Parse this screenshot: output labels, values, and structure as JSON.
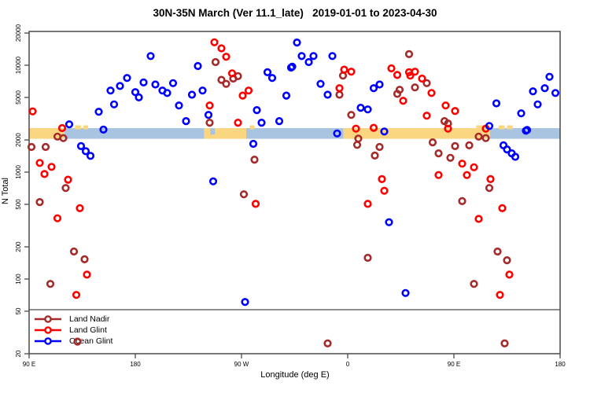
{
  "title": "30N-35N March (Ver 11.1_late)   2019-01-01 to 2023-04-30",
  "chart_data": {
    "type": "scatter",
    "title": "30N-35N March (Ver 11.1_late)   2019-01-01 to 2023-04-30",
    "xlabel": "Longitude (deg E)",
    "ylabel": "N Total",
    "x_axis": {
      "description": "longitude along axis, degrees east starting at 90E and wrapping eastward",
      "range": [
        90,
        540
      ],
      "ticks": [
        {
          "deg": 90,
          "label": "90 E"
        },
        {
          "deg": 180,
          "label": "180"
        },
        {
          "deg": 270,
          "label": "90 W"
        },
        {
          "deg": 360,
          "label": "0"
        },
        {
          "deg": 450,
          "label": "90 E"
        },
        {
          "deg": 540,
          "label": "180"
        }
      ]
    },
    "y_axis": {
      "scale": "log10",
      "range": [
        20,
        20000
      ],
      "ticks": [
        20,
        50,
        100,
        200,
        500,
        1000,
        2000,
        5000,
        10000,
        20000
      ]
    },
    "grid": "off",
    "legend": {
      "position": "bottom-left",
      "separator_value": 50
    },
    "colors": {
      "land_nadir": "#A52A2A",
      "land_glint": "#FF0000",
      "ocean_glint": "#0000FF",
      "band_land": "#FAD681",
      "band_ocean": "#A9C4E1",
      "frame": "#4a4a4a",
      "text": "#000000"
    },
    "surface_band": {
      "description": "land/ocean strip along 30N-35N drawn across plot",
      "value_top": 2580,
      "value_bottom": 2050,
      "segments": [
        {
          "from": 90,
          "to": 120,
          "type": "land"
        },
        {
          "from": 120,
          "to": 238.5,
          "type": "ocean"
        },
        {
          "from": 238.5,
          "to": 274,
          "type": "land"
        },
        {
          "from": 274,
          "to": 356.5,
          "type": "ocean"
        },
        {
          "from": 356.5,
          "to": 480.5,
          "type": "land"
        },
        {
          "from": 480.5,
          "to": 540,
          "type": "ocean"
        }
      ],
      "islands": [
        {
          "from": 129,
          "to": 134,
          "type": "land"
        },
        {
          "from": 136,
          "to": 140,
          "type": "land"
        },
        {
          "from": 277,
          "to": 281,
          "type": "land"
        },
        {
          "from": 469,
          "to": 480,
          "type": "land"
        },
        {
          "from": 488,
          "to": 493,
          "type": "land"
        },
        {
          "from": 495,
          "to": 500,
          "type": "land"
        },
        {
          "from": 243.5,
          "to": 247.5,
          "type": "ocean_notch"
        }
      ]
    },
    "series": [
      {
        "name": "Land Nadir",
        "color": "#A52A2A",
        "points": [
          [
            114,
            2150
          ],
          [
            119,
            2080
          ],
          [
            92,
            1720
          ],
          [
            104,
            1720
          ],
          [
            121,
            710
          ],
          [
            99,
            525
          ],
          [
            128,
            181
          ],
          [
            137,
            153
          ],
          [
            108,
            90
          ],
          [
            131,
            26
          ],
          [
            248,
            10700
          ],
          [
            253,
            7300
          ],
          [
            257,
            6700
          ],
          [
            263,
            7500
          ],
          [
            267,
            7900
          ],
          [
            243,
            2900
          ],
          [
            281,
            1310
          ],
          [
            272,
            620
          ],
          [
            412,
            12700
          ],
          [
            356,
            8000
          ],
          [
            353,
            5300
          ],
          [
            404,
            5900
          ],
          [
            402,
            5400
          ],
          [
            417,
            6200
          ],
          [
            427,
            6800
          ],
          [
            363,
            3430
          ],
          [
            442,
            3000
          ],
          [
            445,
            2850
          ],
          [
            369,
            2060
          ],
          [
            368,
            1800
          ],
          [
            387,
            1720
          ],
          [
            383,
            1430
          ],
          [
            432,
            1900
          ],
          [
            437,
            1500
          ],
          [
            447,
            1360
          ],
          [
            451,
            1750
          ],
          [
            463,
            1780
          ],
          [
            471,
            2150
          ],
          [
            477,
            2080
          ],
          [
            480,
            710
          ],
          [
            457,
            535
          ],
          [
            377,
            158
          ],
          [
            487,
            181
          ],
          [
            495,
            150
          ],
          [
            467,
            90
          ],
          [
            343,
            25
          ],
          [
            493,
            25
          ]
        ]
      },
      {
        "name": "Land Glint",
        "color": "#FF0000",
        "points": [
          [
            93,
            3700
          ],
          [
            118,
            2580
          ],
          [
            99,
            1220
          ],
          [
            109,
            1120
          ],
          [
            103,
            960
          ],
          [
            123,
            850
          ],
          [
            133,
            460
          ],
          [
            114,
            370
          ],
          [
            139,
            110
          ],
          [
            130,
            71
          ],
          [
            247,
            16400
          ],
          [
            253,
            14400
          ],
          [
            257,
            12000
          ],
          [
            262,
            8400
          ],
          [
            243,
            4200
          ],
          [
            271,
            5200
          ],
          [
            276,
            5800
          ],
          [
            267,
            2900
          ],
          [
            282,
            505
          ],
          [
            357,
            9100
          ],
          [
            363,
            8700
          ],
          [
            353,
            6100
          ],
          [
            367,
            2550
          ],
          [
            382,
            2600
          ],
          [
            397,
            9350
          ],
          [
            402,
            8100
          ],
          [
            413,
            8000
          ],
          [
            417,
            8700
          ],
          [
            423,
            7500
          ],
          [
            431,
            5500
          ],
          [
            407,
            4650
          ],
          [
            443,
            4200
          ],
          [
            451,
            3730
          ],
          [
            427,
            3370
          ],
          [
            412,
            8600
          ],
          [
            445,
            2550
          ],
          [
            477,
            2550
          ],
          [
            437,
            940
          ],
          [
            457,
            1200
          ],
          [
            467,
            1110
          ],
          [
            461,
            940
          ],
          [
            389,
            860
          ],
          [
            391,
            670
          ],
          [
            377,
            505
          ],
          [
            481,
            860
          ],
          [
            491,
            460
          ],
          [
            471,
            365
          ],
          [
            497,
            110
          ],
          [
            489,
            71
          ]
        ]
      },
      {
        "name": "Ocean Glint",
        "color": "#0000FF",
        "points": [
          [
            193,
            12200
          ],
          [
            233,
            9840
          ],
          [
            292,
            8600
          ],
          [
            296,
            7600
          ],
          [
            312,
            9500
          ],
          [
            159,
            5800
          ],
          [
            167,
            6400
          ],
          [
            173,
            7600
          ],
          [
            180,
            5600
          ],
          [
            183,
            5000
          ],
          [
            187,
            6900
          ],
          [
            197,
            6600
          ],
          [
            203,
            5800
          ],
          [
            207,
            5500
          ],
          [
            212,
            6800
          ],
          [
            217,
            4200
          ],
          [
            228,
            5300
          ],
          [
            237,
            5800
          ],
          [
            124,
            2800
          ],
          [
            149,
            3670
          ],
          [
            153,
            2500
          ],
          [
            162,
            4300
          ],
          [
            223,
            3000
          ],
          [
            242,
            3430
          ],
          [
            283,
            3800
          ],
          [
            287,
            2900
          ],
          [
            302,
            3000
          ],
          [
            308,
            5200
          ],
          [
            280,
            1840
          ],
          [
            246,
            820
          ],
          [
            273,
            61
          ],
          [
            134,
            1750
          ],
          [
            138,
            1570
          ],
          [
            142,
            1420
          ],
          [
            317,
            16300
          ],
          [
            321,
            12200
          ],
          [
            327,
            10700
          ],
          [
            331,
            12200
          ],
          [
            313,
            9700
          ],
          [
            347,
            12200
          ],
          [
            337,
            6700
          ],
          [
            343,
            5300
          ],
          [
            382,
            6100
          ],
          [
            387,
            6600
          ],
          [
            371,
            4000
          ],
          [
            377,
            3860
          ],
          [
            351,
            2300
          ],
          [
            391,
            2400
          ],
          [
            395,
            340
          ],
          [
            409,
            74
          ],
          [
            492,
            1780
          ],
          [
            495,
            1630
          ],
          [
            499,
            1500
          ],
          [
            502,
            1390
          ],
          [
            480,
            2700
          ],
          [
            511,
            2440
          ],
          [
            531,
            7800
          ],
          [
            527,
            6100
          ],
          [
            517,
            5700
          ],
          [
            536,
            5500
          ],
          [
            521,
            4300
          ],
          [
            507,
            3550
          ],
          [
            512,
            2480
          ],
          [
            486,
            4400
          ]
        ]
      }
    ]
  }
}
